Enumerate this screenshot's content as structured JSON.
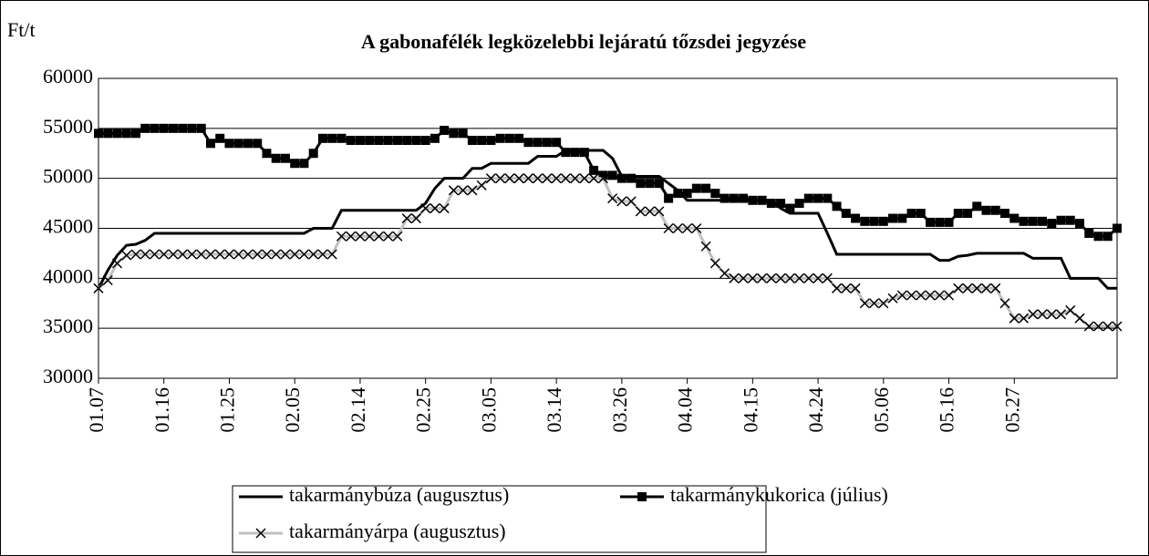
{
  "chart_data": {
    "type": "line",
    "title": "A gabonafélék legközelebbi lejáratú tőzsdei jegyzése",
    "y_label": "Ft/t",
    "categories": [
      "01.07",
      null,
      null,
      null,
      null,
      null,
      null,
      "01.16",
      null,
      null,
      null,
      null,
      null,
      null,
      "01.25",
      null,
      null,
      null,
      null,
      null,
      null,
      "02.05",
      null,
      null,
      null,
      null,
      null,
      null,
      "02.14",
      null,
      null,
      null,
      null,
      null,
      null,
      "02.25",
      null,
      null,
      null,
      null,
      null,
      null,
      "03.05",
      null,
      null,
      null,
      null,
      null,
      null,
      "03.14",
      null,
      null,
      null,
      null,
      null,
      null,
      "03.26",
      null,
      null,
      null,
      null,
      null,
      null,
      "04.04",
      null,
      null,
      null,
      null,
      null,
      null,
      "04.15",
      null,
      null,
      null,
      null,
      null,
      null,
      "04.24",
      null,
      null,
      null,
      null,
      null,
      null,
      "05.06",
      null,
      null,
      null,
      null,
      null,
      null,
      "05.16",
      null,
      null,
      null,
      null,
      null,
      null,
      "05.27",
      null,
      null,
      null,
      null,
      null,
      null,
      null,
      null,
      null,
      null,
      null
    ],
    "series": [
      {
        "name": "takarmánybúza (augusztus)",
        "color": "#000000",
        "marker": "none",
        "marker_color": "#000000",
        "values": [
          39000,
          40800,
          42300,
          43300,
          43400,
          43800,
          44500,
          44500,
          44500,
          44500,
          44500,
          44500,
          44500,
          44500,
          44500,
          44500,
          44500,
          44500,
          44500,
          44500,
          44500,
          44500,
          44500,
          45000,
          45000,
          45000,
          46800,
          46800,
          46800,
          46800,
          46800,
          46800,
          46800,
          46800,
          46800,
          47500,
          49000,
          50000,
          50000,
          50000,
          51000,
          51000,
          51500,
          51500,
          51500,
          51500,
          51500,
          52200,
          52200,
          52200,
          52800,
          52800,
          52800,
          52800,
          52800,
          52000,
          50200,
          50200,
          50200,
          50200,
          50200,
          49500,
          48800,
          47800,
          47800,
          47800,
          47800,
          47800,
          47800,
          47800,
          47800,
          47800,
          47800,
          47000,
          46500,
          46500,
          46500,
          46500,
          44500,
          42400,
          42400,
          42400,
          42400,
          42400,
          42400,
          42400,
          42400,
          42400,
          42400,
          42400,
          41800,
          41800,
          42200,
          42300,
          42500,
          42500,
          42500,
          42500,
          42500,
          42500,
          42000,
          42000,
          42000,
          42000,
          40000,
          40000,
          40000,
          40000,
          39000,
          39000
        ]
      },
      {
        "name": "takarmánykukorica (július)",
        "color": "#000000",
        "marker": "square",
        "marker_color": "#000000",
        "values": [
          54500,
          54500,
          54500,
          54500,
          54500,
          55000,
          55000,
          55000,
          55000,
          55000,
          55000,
          55000,
          53500,
          54000,
          53500,
          53500,
          53500,
          53500,
          52500,
          52000,
          52000,
          51500,
          51500,
          52500,
          54000,
          54000,
          54000,
          53800,
          53800,
          53800,
          53800,
          53800,
          53800,
          53800,
          53800,
          53800,
          54000,
          54800,
          54500,
          54500,
          53800,
          53800,
          53800,
          54000,
          54000,
          54000,
          53600,
          53600,
          53600,
          53600,
          52600,
          52600,
          52600,
          50800,
          50300,
          50300,
          50000,
          50000,
          49500,
          49500,
          49500,
          48000,
          48500,
          48500,
          49000,
          49000,
          48500,
          48000,
          48000,
          48000,
          47800,
          47800,
          47500,
          47500,
          47000,
          47500,
          48000,
          48000,
          48000,
          47200,
          46500,
          46000,
          45700,
          45700,
          45700,
          46000,
          46000,
          46500,
          46500,
          45600,
          45600,
          45600,
          46500,
          46500,
          47200,
          46800,
          46800,
          46500,
          46000,
          45700,
          45700,
          45700,
          45500,
          45800,
          45800,
          45500,
          44500,
          44200,
          44200,
          45000
        ]
      },
      {
        "name": "takarmányárpa (augusztus)",
        "color": "#c0c0c0",
        "marker": "x",
        "marker_color": "#000000",
        "values": [
          39000,
          39800,
          41500,
          42300,
          42400,
          42400,
          42400,
          42400,
          42400,
          42400,
          42400,
          42400,
          42400,
          42400,
          42400,
          42400,
          42400,
          42400,
          42400,
          42400,
          42400,
          42400,
          42400,
          42400,
          42400,
          42400,
          44200,
          44200,
          44200,
          44200,
          44200,
          44200,
          44200,
          46000,
          46000,
          47000,
          47000,
          47000,
          48800,
          48800,
          48800,
          49300,
          50000,
          50000,
          50000,
          50000,
          50000,
          50000,
          50000,
          50000,
          50000,
          50000,
          50000,
          50000,
          50000,
          48000,
          47700,
          47700,
          46700,
          46700,
          46700,
          45000,
          45000,
          45000,
          45000,
          43200,
          41500,
          40500,
          40000,
          40000,
          40000,
          40000,
          40000,
          40000,
          40000,
          40000,
          40000,
          40000,
          40000,
          39000,
          39000,
          39000,
          37500,
          37500,
          37500,
          38000,
          38300,
          38300,
          38300,
          38300,
          38300,
          38300,
          39000,
          39000,
          39000,
          39000,
          39000,
          37500,
          36000,
          36000,
          36400,
          36400,
          36400,
          36400,
          36800,
          36000,
          35200,
          35200,
          35200,
          35200
        ]
      }
    ],
    "ylim": [
      30000,
      60000
    ],
    "yticks": [
      30000,
      35000,
      40000,
      45000,
      50000,
      55000,
      60000
    ],
    "grid": true
  }
}
